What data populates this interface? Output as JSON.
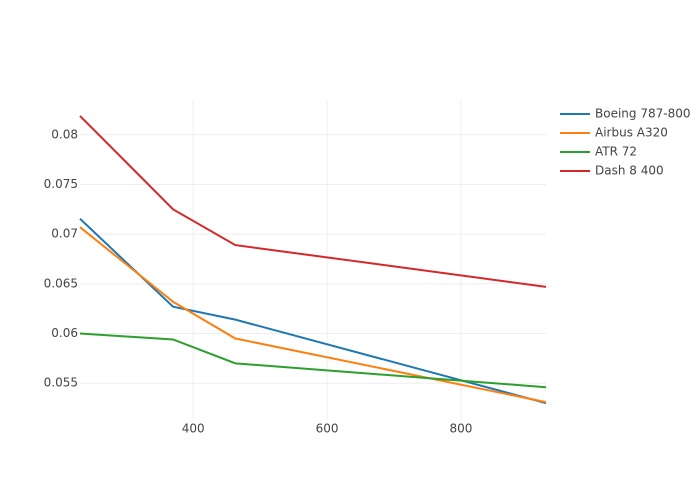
{
  "chart_data": {
    "type": "line",
    "x": [
      231,
      370,
      463,
      927
    ],
    "series": [
      {
        "name": "Boeing 787-800",
        "color": "#1f77b4",
        "values": [
          0.07155,
          0.0627,
          0.0614,
          0.053
        ]
      },
      {
        "name": "Airbus A320",
        "color": "#ff7f0e",
        "values": [
          0.0707,
          0.0632,
          0.0595,
          0.0531
        ]
      },
      {
        "name": "ATR 72",
        "color": "#2ca02c",
        "values": [
          0.06,
          0.0594,
          0.057,
          0.0546
        ]
      },
      {
        "name": "Dash 8 400",
        "color": "#d62728",
        "values": [
          0.0819,
          0.0725,
          0.0689,
          0.0647
        ]
      }
    ],
    "xlim": [
      231,
      927
    ],
    "xticks": [
      400,
      600,
      800
    ],
    "ylim": [
      0.0513,
      0.0835
    ],
    "yticks": [
      0.055,
      0.06,
      0.065,
      0.07,
      0.075,
      0.08
    ],
    "grid": true,
    "legend": "top-right"
  }
}
